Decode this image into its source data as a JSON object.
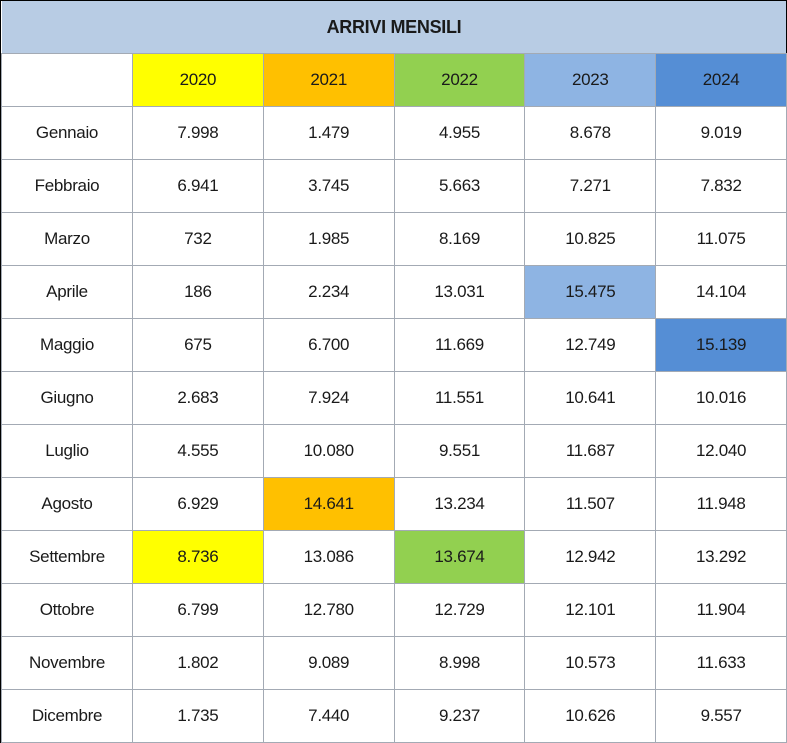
{
  "title": "ARRIVI MENSILI",
  "chart_data": {
    "type": "table",
    "title": "ARRIVI MENSILI",
    "columns": [
      "2020",
      "2021",
      "2022",
      "2023",
      "2024"
    ],
    "column_colors": [
      "#ffff00",
      "#ffc000",
      "#92d050",
      "#8eb4e3",
      "#558ed5"
    ],
    "rows": [
      {
        "month": "Gennaio",
        "values": [
          "7.998",
          "1.479",
          "4.955",
          "8.678",
          "9.019"
        ]
      },
      {
        "month": "Febbraio",
        "values": [
          "6.941",
          "3.745",
          "5.663",
          "7.271",
          "7.832"
        ]
      },
      {
        "month": "Marzo",
        "values": [
          "732",
          "1.985",
          "8.169",
          "10.825",
          "11.075"
        ]
      },
      {
        "month": "Aprile",
        "values": [
          "186",
          "2.234",
          "13.031",
          "15.475",
          "14.104"
        ]
      },
      {
        "month": "Maggio",
        "values": [
          "675",
          "6.700",
          "11.669",
          "12.749",
          "15.139"
        ]
      },
      {
        "month": "Giugno",
        "values": [
          "2.683",
          "7.924",
          "11.551",
          "10.641",
          "10.016"
        ]
      },
      {
        "month": "Luglio",
        "values": [
          "4.555",
          "10.080",
          "9.551",
          "11.687",
          "12.040"
        ]
      },
      {
        "month": "Agosto",
        "values": [
          "6.929",
          "14.641",
          "13.234",
          "11.507",
          "11.948"
        ]
      },
      {
        "month": "Settembre",
        "values": [
          "8.736",
          "13.086",
          "13.674",
          "12.942",
          "13.292"
        ]
      },
      {
        "month": "Ottobre",
        "values": [
          "6.799",
          "12.780",
          "12.729",
          "12.101",
          "11.904"
        ]
      },
      {
        "month": "Novembre",
        "values": [
          "1.802",
          "9.089",
          "8.998",
          "10.573",
          "11.633"
        ]
      },
      {
        "month": "Dicembre",
        "values": [
          "1.735",
          "7.440",
          "9.237",
          "10.626",
          "9.557"
        ]
      }
    ],
    "highlighted_maxima": [
      {
        "column": "2020",
        "month": "Settembre"
      },
      {
        "column": "2021",
        "month": "Agosto"
      },
      {
        "column": "2022",
        "month": "Settembre"
      },
      {
        "column": "2023",
        "month": "Aprile"
      },
      {
        "column": "2024",
        "month": "Maggio"
      }
    ]
  }
}
